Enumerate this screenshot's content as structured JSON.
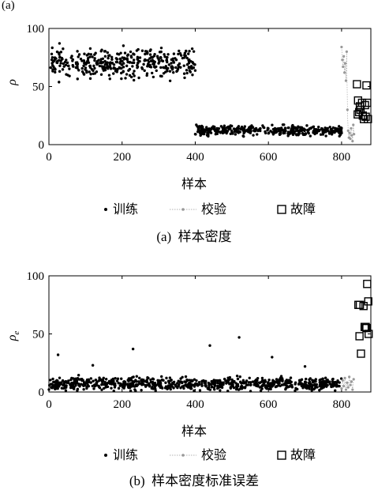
{
  "corner_mark": "(a)",
  "chart_data": [
    {
      "type": "scatter",
      "caption": "(a)  样本密度",
      "xlabel": "样本",
      "ylabel": "ρ",
      "xlim": [
        0,
        880
      ],
      "ylim": [
        0,
        100
      ],
      "xticks": [
        0,
        200,
        400,
        600,
        800
      ],
      "yticks": [
        0,
        50,
        100
      ],
      "grid": false,
      "legend_position": "bottom",
      "series": [
        {
          "name": "训练",
          "marker": "dot",
          "color": "#000000",
          "clusters": [
            {
              "x_range": [
                0,
                400
              ],
              "y_center": 70,
              "y_spread": 18,
              "count": 400
            },
            {
              "x_range": [
                400,
                800
              ],
              "y_center": 12,
              "y_spread": 6,
              "count": 400
            }
          ]
        },
        {
          "name": "校验",
          "marker": "dot-line",
          "color": "#999999",
          "points": [
            [
              800,
              84
            ],
            [
              802,
              73
            ],
            [
              804,
              67
            ],
            [
              806,
              76
            ],
            [
              808,
              62
            ],
            [
              810,
              70
            ],
            [
              812,
              55
            ],
            [
              814,
              80
            ],
            [
              816,
              30
            ],
            [
              818,
              12
            ],
            [
              820,
              6
            ],
            [
              822,
              10
            ],
            [
              824,
              5
            ],
            [
              826,
              14
            ],
            [
              828,
              8
            ],
            [
              830,
              3
            ],
            [
              832,
              17
            ],
            [
              834,
              9
            ]
          ]
        },
        {
          "name": "故障",
          "marker": "square",
          "color": "#000000",
          "points": [
            [
              842,
              52
            ],
            [
              868,
              51
            ],
            [
              845,
              38
            ],
            [
              850,
              33
            ],
            [
              856,
              36
            ],
            [
              864,
              34
            ],
            [
              848,
              28
            ],
            [
              858,
              25
            ],
            [
              870,
              36
            ],
            [
              861,
              22
            ],
            [
              872,
              22
            ],
            [
              844,
              26
            ],
            [
              866,
              24
            ],
            [
              852,
              30
            ]
          ]
        }
      ]
    },
    {
      "type": "scatter",
      "caption": "(b)  样本密度标准误差",
      "xlabel": "样本",
      "ylabel": "ρ",
      "ylabel_subscript": "e",
      "xlim": [
        0,
        880
      ],
      "ylim": [
        0,
        100
      ],
      "xticks": [
        0,
        200,
        400,
        600,
        800
      ],
      "yticks": [
        0,
        50,
        100
      ],
      "grid": false,
      "legend_position": "bottom",
      "series": [
        {
          "name": "训练",
          "marker": "dot",
          "color": "#000000",
          "clusters": [
            {
              "x_range": [
                0,
                800
              ],
              "y_center": 7,
              "y_spread": 8,
              "count": 800
            }
          ],
          "outliers": [
            [
              25,
              32
            ],
            [
              230,
              37
            ],
            [
              440,
              40
            ],
            [
              520,
              47
            ],
            [
              700,
              22
            ],
            [
              120,
              23
            ],
            [
              610,
              30
            ]
          ]
        },
        {
          "name": "校验",
          "marker": "dot-line",
          "color": "#999999",
          "points": [
            [
              800,
              3
            ],
            [
              803,
              10
            ],
            [
              806,
              5
            ],
            [
              809,
              12
            ],
            [
              812,
              2
            ],
            [
              815,
              8
            ],
            [
              818,
              4
            ],
            [
              821,
              13
            ],
            [
              824,
              6
            ],
            [
              827,
              9
            ],
            [
              830,
              2
            ],
            [
              833,
              11
            ]
          ]
        },
        {
          "name": "故障",
          "marker": "square",
          "color": "#000000",
          "points": [
            [
              870,
              93
            ],
            [
              873,
              78
            ],
            [
              850,
              75
            ],
            [
              846,
              75
            ],
            [
              860,
              74
            ],
            [
              849,
              48
            ],
            [
              863,
              56
            ],
            [
              866,
              56
            ],
            [
              853,
              33
            ],
            [
              874,
              50
            ],
            [
              868,
              55
            ]
          ]
        }
      ]
    }
  ]
}
